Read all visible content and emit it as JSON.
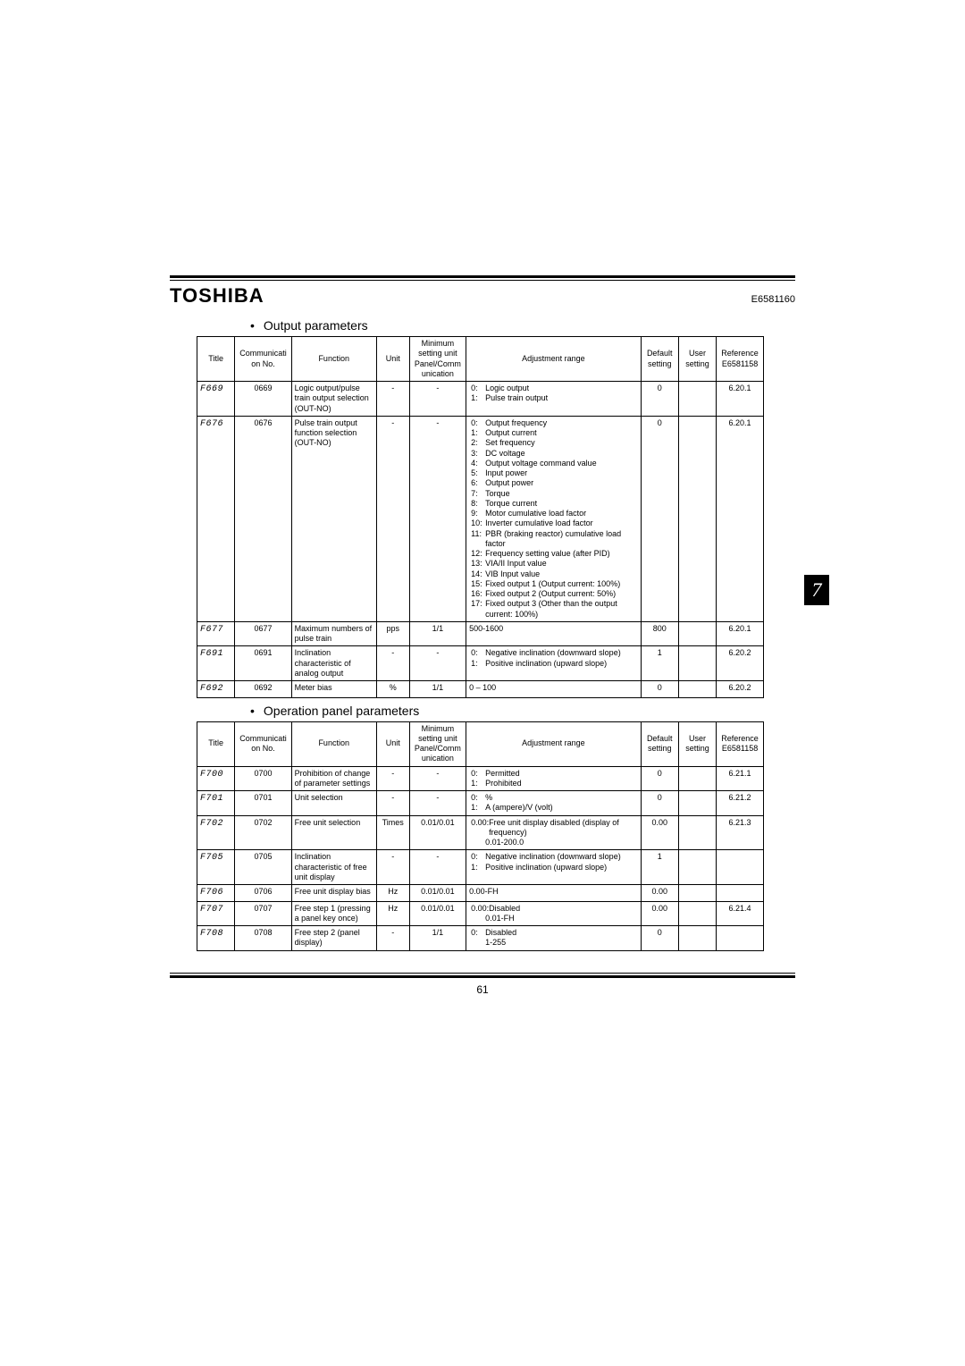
{
  "doc": {
    "brand": "TOSHIBA",
    "docnum": "E6581160",
    "page_number": "61",
    "side_tab": "7"
  },
  "sections": [
    {
      "title": "Output parameters",
      "headers": [
        "Title",
        "Communication No.",
        "Function",
        "Unit",
        "Minimum setting unit Panel/Communication",
        "Adjustment range",
        "Default setting",
        "User setting",
        "Reference E6581158"
      ],
      "rows": [
        {
          "title": "F669",
          "comm": "0669",
          "func": "Logic output/pulse train output selection (OUT-NO)",
          "unit": "-",
          "min": "-",
          "adj": [
            [
              "0:",
              "Logic output"
            ],
            [
              "1:",
              "Pulse train output"
            ]
          ],
          "def": "0",
          "user": "",
          "ref": "6.20.1"
        },
        {
          "title": "F676",
          "comm": "0676",
          "func": "Pulse train output function selection (OUT-NO)",
          "unit": "-",
          "min": "-",
          "adj": [
            [
              "0:",
              "Output frequency"
            ],
            [
              "1:",
              "Output current"
            ],
            [
              "2:",
              "Set frequency"
            ],
            [
              "3:",
              "DC voltage"
            ],
            [
              "4:",
              "Output voltage command value"
            ],
            [
              "5:",
              "Input power"
            ],
            [
              "6:",
              "Output power"
            ],
            [
              "7:",
              "Torque"
            ],
            [
              "8:",
              "Torque current"
            ],
            [
              "9:",
              "Motor cumulative load factor"
            ],
            [
              "10:",
              "Inverter cumulative load factor"
            ],
            [
              "11:",
              "PBR (braking reactor) cumulative load factor"
            ],
            [
              "12:",
              "Frequency setting value (after PID)"
            ],
            [
              "13:",
              "VIA/II Input value"
            ],
            [
              "14:",
              "VIB Input value"
            ],
            [
              "15:",
              "Fixed output 1 (Output current: 100%)"
            ],
            [
              "16:",
              "Fixed output 2 (Output current: 50%)"
            ],
            [
              "17:",
              "Fixed output 3 (Other than the output current: 100%)"
            ]
          ],
          "def": "0",
          "user": "",
          "ref": "6.20.1"
        },
        {
          "title": "F677",
          "comm": "0677",
          "func": "Maximum numbers of pulse train",
          "unit": "pps",
          "min": "1/1",
          "adj_plain": "500-1600",
          "def": "800",
          "user": "",
          "ref": "6.20.1"
        },
        {
          "title": "F691",
          "comm": "0691",
          "func": "Inclination characteristic of analog output",
          "unit": "-",
          "min": "-",
          "adj": [
            [
              "0:",
              "Negative inclination (downward slope)"
            ],
            [
              "1:",
              "Positive inclination (upward slope)"
            ]
          ],
          "def": "1",
          "user": "",
          "ref": "6.20.2"
        },
        {
          "title": "F692",
          "comm": "0692",
          "func": "Meter bias",
          "unit": "%",
          "min": "1/1",
          "adj_plain": "0 – 100",
          "def": "0",
          "user": "",
          "ref": "6.20.2"
        }
      ]
    },
    {
      "title": "Operation panel parameters",
      "headers": [
        "Title",
        "Communication No.",
        "Function",
        "Unit",
        "Minimum setting unit Panel/Communication",
        "Adjustment range",
        "Default setting",
        "User setting",
        "Reference E6581158"
      ],
      "rows": [
        {
          "title": "F700",
          "comm": "0700",
          "func": "Prohibition of change of parameter settings",
          "unit": "-",
          "min": "-",
          "adj": [
            [
              "0:",
              "Permitted"
            ],
            [
              "1:",
              "Prohibited"
            ]
          ],
          "def": "0",
          "user": "",
          "ref": "6.21.1"
        },
        {
          "title": "F701",
          "comm": "0701",
          "func": "Unit selection",
          "unit": "-",
          "min": "-",
          "adj": [
            [
              "0:",
              "%"
            ],
            [
              "1:",
              "A (ampere)/V (volt)"
            ]
          ],
          "def": "0",
          "user": "",
          "ref": "6.21.2"
        },
        {
          "title": "F702",
          "comm": "0702",
          "func": "Free unit selection",
          "unit": "Times",
          "min": "0.01/0.01",
          "adj": [
            [
              "0.00:",
              "Free unit display disabled (display of frequency)"
            ],
            [
              "",
              "0.01-200.0"
            ]
          ],
          "def": "0.00",
          "user": "",
          "ref": "6.21.3"
        },
        {
          "title": "F705",
          "comm": "0705",
          "func": "Inclination characteristic of free unit display",
          "unit": "-",
          "min": "-",
          "adj": [
            [
              "0:",
              "Negative inclination (downward slope)"
            ],
            [
              "1:",
              "Positive inclination (upward slope)"
            ]
          ],
          "def": "1",
          "user": "",
          "ref": ""
        },
        {
          "title": "F706",
          "comm": "0706",
          "func": "Free unit display bias",
          "unit": "Hz",
          "min": "0.01/0.01",
          "adj_plain": "0.00-FH",
          "def": "0.00",
          "user": "",
          "ref": ""
        },
        {
          "title": "F707",
          "comm": "0707",
          "func": "Free step 1 (pressing a panel key once)",
          "unit": "Hz",
          "min": "0.01/0.01",
          "adj": [
            [
              "0.00:",
              "Disabled"
            ],
            [
              "",
              "0.01-FH"
            ]
          ],
          "def": "0.00",
          "user": "",
          "ref": "6.21.4"
        },
        {
          "title": "F708",
          "comm": "0708",
          "func": "Free step 2 (panel display)",
          "unit": "-",
          "min": "1/1",
          "adj": [
            [
              "0:",
              "Disabled"
            ],
            [
              "",
              "1-255"
            ]
          ],
          "def": "0",
          "user": "",
          "ref": ""
        }
      ]
    }
  ]
}
